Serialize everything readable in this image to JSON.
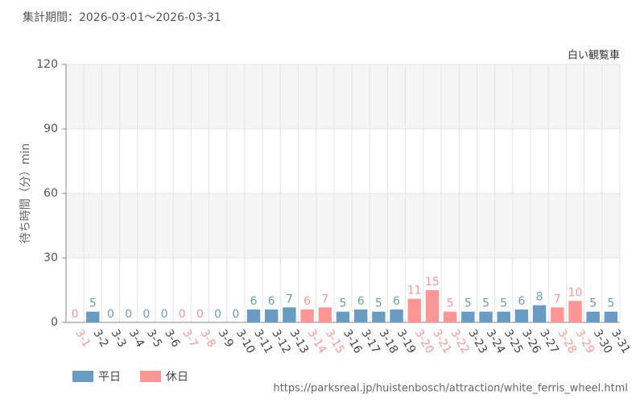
{
  "chart_data": {
    "type": "bar",
    "title": "集計期間：2026-03-01～2026-03-31",
    "subtitle": "白い観覧車",
    "y_label": "待ち時間（分）min",
    "source": "https://parksreal.jp/huistenbosch/attraction/white_ferris_wheel.html",
    "categories": [
      "3-1",
      "3-2",
      "3-3",
      "3-4",
      "3-5",
      "3-6",
      "3-7",
      "3-8",
      "3-9",
      "3-10",
      "3-11",
      "3-12",
      "3-13",
      "3-14",
      "3-15",
      "3-16",
      "3-17",
      "3-18",
      "3-19",
      "3-20",
      "3-21",
      "3-22",
      "3-23",
      "3-24",
      "3-25",
      "3-26",
      "3-27",
      "3-28",
      "3-29",
      "3-30",
      "3-31"
    ],
    "series": [
      {
        "name": "平日",
        "color": "#6a9bc3",
        "values": [
          null,
          5,
          0,
          0,
          0,
          0,
          null,
          null,
          0,
          0,
          6,
          6,
          7,
          null,
          null,
          5,
          6,
          5,
          6,
          null,
          null,
          null,
          5,
          5,
          5,
          6,
          8,
          null,
          null,
          5,
          5
        ]
      },
      {
        "name": "休日",
        "color": "#ff9696",
        "values": [
          0,
          null,
          null,
          null,
          null,
          null,
          0,
          0,
          null,
          null,
          null,
          null,
          null,
          6,
          7,
          null,
          null,
          null,
          null,
          11,
          15,
          5,
          null,
          null,
          null,
          null,
          null,
          7,
          10,
          null,
          null
        ]
      }
    ],
    "ylim": [
      0,
      120
    ],
    "yticks": [
      0,
      30,
      60,
      90,
      120
    ],
    "grid": true
  }
}
